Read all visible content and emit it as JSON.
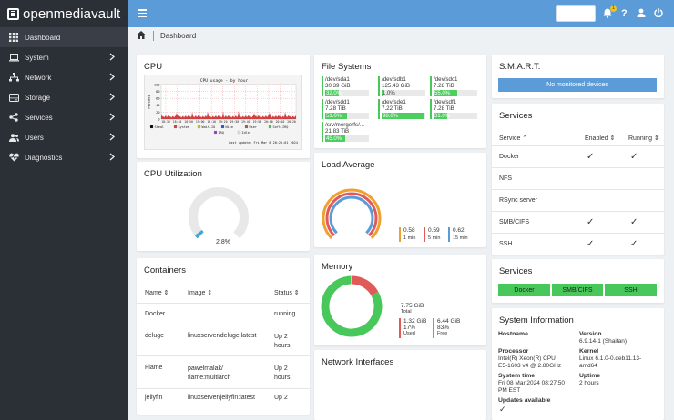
{
  "app": {
    "name": "openmediavault"
  },
  "sidebar": {
    "items": [
      {
        "label": "Dashboard",
        "icon": "dashboard-icon"
      },
      {
        "label": "System",
        "icon": "laptop-icon"
      },
      {
        "label": "Network",
        "icon": "network-icon"
      },
      {
        "label": "Storage",
        "icon": "storage-icon"
      },
      {
        "label": "Services",
        "icon": "share-icon"
      },
      {
        "label": "Users",
        "icon": "users-icon"
      },
      {
        "label": "Diagnostics",
        "icon": "heartbeat-icon"
      }
    ]
  },
  "topbar": {
    "notification_count": "1"
  },
  "breadcrumb": {
    "current": "Dashboard"
  },
  "cpu": {
    "title": "CPU",
    "graph_title": "CPU usage - by hour",
    "ylabel": "Percent",
    "yticks": [
      "100",
      "80",
      "60",
      "40",
      "20",
      "0"
    ],
    "xticks": [
      "18:30",
      "18:40",
      "18:50",
      "19:00",
      "19:10",
      "19:20",
      "19:30",
      "19:40",
      "19:50",
      "20:00",
      "20:10",
      "20:20"
    ],
    "legend": [
      "Steal",
      "System",
      "Wait-IO",
      "Nice",
      "User",
      "Soft-IRQ",
      "IRQ",
      "Idle"
    ],
    "last_update": "Last update: Fri Mar  8 20:25:01 2024"
  },
  "file_systems": {
    "title": "File Systems",
    "items": [
      {
        "name": "/dev/sda1",
        "size": "30.39 GiB",
        "percent": 32.0,
        "label": "32.0%"
      },
      {
        "name": "/dev/sdb1",
        "size": "125.43 GiB",
        "percent": 1.0,
        "label": "1.0%"
      },
      {
        "name": "/dev/sdc1",
        "size": "7.28 TiB",
        "percent": 55.0,
        "label": "55.0%"
      },
      {
        "name": "/dev/sdd1",
        "size": "7.28 TiB",
        "percent": 51.0,
        "label": "51.0%"
      },
      {
        "name": "/dev/sde1",
        "size": "7.22 TiB",
        "percent": 98.0,
        "label": "98.0%"
      },
      {
        "name": "/dev/sdf1",
        "size": "7.28 TiB",
        "percent": 31.0,
        "label": "31.0%"
      },
      {
        "name": "/srv/mergerfs/...",
        "size": "21.83 TiB",
        "percent": 45.0,
        "label": "45.0%"
      }
    ]
  },
  "smart": {
    "title": "S.M.A.R.T.",
    "message": "No monitored devices"
  },
  "services_table": {
    "title": "Services",
    "headers": [
      "Service",
      "Enabled",
      "Running"
    ],
    "rows": [
      {
        "name": "Docker",
        "enabled": true,
        "running": true
      },
      {
        "name": "NFS",
        "enabled": false,
        "running": false
      },
      {
        "name": "RSync server",
        "enabled": false,
        "running": false
      },
      {
        "name": "SMB/CIFS",
        "enabled": true,
        "running": true
      },
      {
        "name": "SSH",
        "enabled": true,
        "running": true
      }
    ],
    "check": "✓"
  },
  "services_buttons": {
    "title": "Services",
    "items": [
      "Docker",
      "SMB/CIFS",
      "SSH"
    ]
  },
  "cpu_utilization": {
    "title": "CPU Utilization",
    "value": 2.8,
    "label": "2.8%"
  },
  "load_average": {
    "title": "Load Average",
    "items": [
      {
        "value": "0.58",
        "period": "1 min",
        "color": "#f0a030"
      },
      {
        "value": "0.59",
        "period": "5 min",
        "color": "#e05a5a"
      },
      {
        "value": "0.62",
        "period": "15 min",
        "color": "#5b9bd8"
      }
    ]
  },
  "memory": {
    "title": "Memory",
    "total": "7.75 GiB",
    "total_label": "Total",
    "used": "1.32 GiB",
    "used_pct": "17%",
    "used_label": "Used",
    "used_fraction": 0.17,
    "free": "6.44 GiB",
    "free_pct": "83%",
    "free_label": "Free"
  },
  "containers": {
    "title": "Containers",
    "headers": [
      "Name",
      "Image",
      "Status"
    ],
    "rows": [
      {
        "name": "Docker",
        "image": "",
        "status": "running"
      },
      {
        "name": "deluge",
        "image": "linuxserver/deluge:latest",
        "status": "Up 2\nhours"
      },
      {
        "name": "Flame",
        "image": "pawelmalak/\nflame:multiarch",
        "status": "Up 2\nhours"
      },
      {
        "name": "jellyfin",
        "image": "linuxserver/jellyfin:latest",
        "status": "Up 2"
      }
    ]
  },
  "network_interfaces": {
    "title": "Network Interfaces"
  },
  "system_info": {
    "title": "System Information",
    "hostname_label": "Hostname",
    "version_label": "Version",
    "version": "6.9.14-1 (Shaitan)",
    "processor_label": "Processor",
    "processor": "Intel(R) Xeon(R) CPU\nE5-1603 v4 @ 2.80GHz",
    "kernel_label": "Kernel",
    "kernel": "Linux 6.1.0-0.deb11.13-\namd64",
    "systemtime_label": "System time",
    "systemtime": "Fri 08 Mar 2024 08:27:50\nPM EST",
    "uptime_label": "Uptime",
    "uptime": "2 hours",
    "updates_label": "Updates available",
    "updates_icon": "✓"
  },
  "colors": {
    "topbar": "#5b9bd8",
    "sidebar": "#2b2f36",
    "green": "#48c85a",
    "red": "#e05a5a"
  }
}
